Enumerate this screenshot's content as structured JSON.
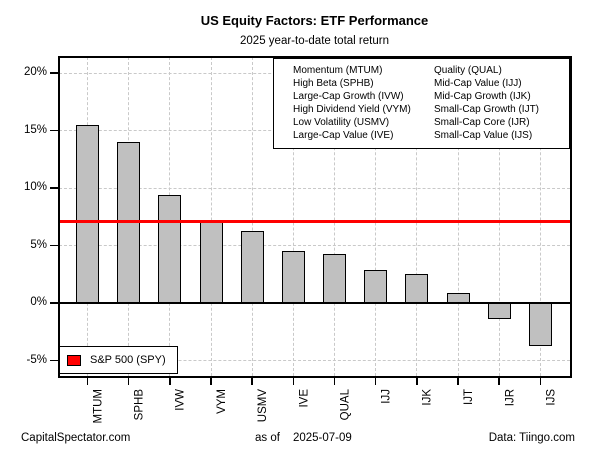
{
  "header": {
    "title": "US Equity Factors: ETF Performance",
    "subtitle": "2025 year-to-date total return"
  },
  "footer": {
    "left": "CapitalSpectator.com",
    "center_prefix": "as of",
    "center_date": "2025-07-09",
    "right": "Data: Tiingo.com"
  },
  "factor_legend": {
    "col1": [
      "Momentum (MTUM)",
      "High Beta (SPHB)",
      "Large-Cap Growth (IVW)",
      "High Dividend Yield (VYM)",
      "Low Volatility (USMV)",
      "Large-Cap Value (IVE)"
    ],
    "col2": [
      "Quality (QUAL)",
      "Mid-Cap Value (IJJ)",
      "Mid-Cap Growth (IJK)",
      "Small-Cap Growth (IJT)",
      "Small-Cap Core (IJR)",
      "Small-Cap Value (IJS)"
    ]
  },
  "spy_legend": {
    "label": "S&P 500 (SPY)",
    "color": "#ff0000"
  },
  "chart_data": {
    "type": "bar",
    "title": "US Equity Factors: ETF Performance",
    "subtitle": "2025 year-to-date total return",
    "categories": [
      "MTUM",
      "SPHB",
      "IVW",
      "VYM",
      "USMV",
      "IVE",
      "QUAL",
      "IJJ",
      "IJK",
      "IJT",
      "IJR",
      "IJS"
    ],
    "values": [
      15.5,
      14.0,
      9.4,
      7.1,
      6.3,
      4.5,
      4.3,
      2.9,
      2.5,
      0.9,
      -1.4,
      -3.7
    ],
    "unit": "%",
    "reference_line": {
      "label": "S&P 500 (SPY)",
      "value": 7.1,
      "color": "#ff0000"
    },
    "yticks": [
      20,
      15,
      10,
      5,
      0,
      -5
    ],
    "ytick_labels": [
      "20%",
      "15%",
      "10%",
      "5%",
      "0%",
      "-5%"
    ],
    "ylim": [
      -6.3,
      21.4
    ],
    "xlabel": "",
    "ylabel": "",
    "grid": "dashed horizontal and vertical",
    "legend_position": "top-right (factor names), bottom-left (S&P 500 reference)",
    "colors": {
      "bar_fill": "#c0c0c0",
      "bar_border": "#000000",
      "grid": "#c9c9c9",
      "reference": "#ff0000",
      "frame": "#000000",
      "background": "#ffffff"
    }
  }
}
